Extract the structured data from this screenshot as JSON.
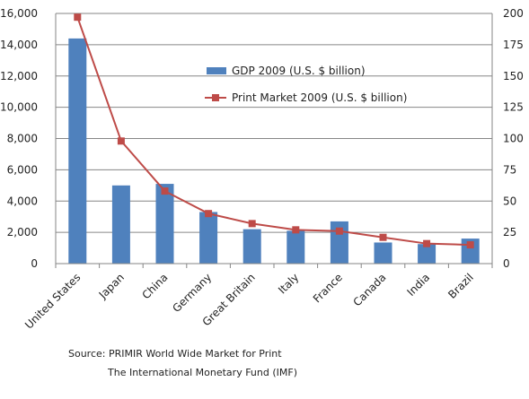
{
  "chart_data": {
    "type": "bar",
    "categories": [
      "United States",
      "Japan",
      "China",
      "Germany",
      "Great Britain",
      "Italy",
      "France",
      "Canada",
      "India",
      "Brazil"
    ],
    "series": [
      {
        "name": "GDP 2009 (U.S. $ billion)",
        "type": "bar",
        "axis": "left",
        "color": "#4F81BD",
        "values": [
          14400,
          5000,
          5100,
          3300,
          2200,
          2100,
          2700,
          1350,
          1250,
          1600
        ]
      },
      {
        "name": "Print Market 2009 (U.S. $ billion)",
        "type": "line",
        "axis": "right",
        "color": "#BE4B48",
        "values": [
          197,
          98,
          58,
          40,
          32,
          27,
          26,
          21,
          16,
          15
        ]
      }
    ],
    "y_left": {
      "ylim": [
        0,
        16000
      ],
      "ticks": [
        0,
        2000,
        4000,
        6000,
        8000,
        10000,
        12000,
        14000,
        16000
      ],
      "tick_labels": [
        "0",
        "2,000",
        "4,000",
        "6,000",
        "8,000",
        "10,000",
        "12,000",
        "14,000",
        "16,000"
      ]
    },
    "y_right": {
      "ylim": [
        0,
        200
      ],
      "ticks": [
        0,
        25,
        50,
        75,
        100,
        125,
        150,
        175,
        200
      ],
      "tick_labels": [
        "0",
        "25",
        "50",
        "75",
        "100",
        "125",
        "150",
        "175",
        "200"
      ]
    },
    "grid": true,
    "legend_position": "inside-top-center",
    "title": "",
    "xlabel": "",
    "ylabel": ""
  },
  "source": {
    "line1": "Source:  PRIMIR World Wide Market for Print",
    "line2": "The International Monetary Fund (IMF)"
  }
}
